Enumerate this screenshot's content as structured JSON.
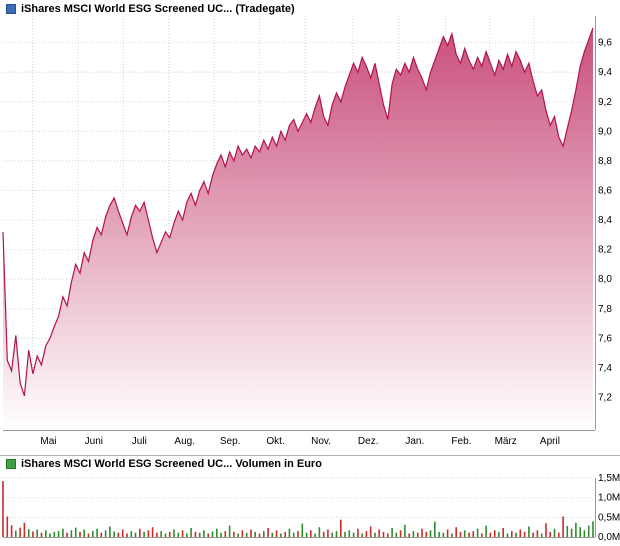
{
  "chart_data": [
    {
      "type": "area",
      "title": "iShares MSCI World ESG Screened UC... (Tradegate)",
      "xlabel": "",
      "ylabel": "",
      "ylim": [
        6.98,
        9.78
      ],
      "grid": true,
      "legend_position": "none",
      "line_color": "#b4124d",
      "fill_top": "#c94f7c",
      "fill_bottom": "#ffffff",
      "y_ticks": [
        {
          "value": 7.2,
          "label": "7,2"
        },
        {
          "value": 7.4,
          "label": "7,4"
        },
        {
          "value": 7.6,
          "label": "7,6"
        },
        {
          "value": 7.8,
          "label": "7,8"
        },
        {
          "value": 8.0,
          "label": "8,0"
        },
        {
          "value": 8.2,
          "label": "8,2"
        },
        {
          "value": 8.4,
          "label": "8,4"
        },
        {
          "value": 8.6,
          "label": "8,6"
        },
        {
          "value": 8.8,
          "label": "8,8"
        },
        {
          "value": 9.0,
          "label": "9,0"
        },
        {
          "value": 9.2,
          "label": "9,2"
        },
        {
          "value": 9.4,
          "label": "9,4"
        },
        {
          "value": 9.6,
          "label": "9,6"
        }
      ],
      "months": [
        {
          "label": "Mai",
          "line": 0.05
        },
        {
          "label": "Juni",
          "line": 0.127
        },
        {
          "label": "Juli",
          "line": 0.204
        },
        {
          "label": "Aug.",
          "line": 0.281
        },
        {
          "label": "Sep.",
          "line": 0.358
        },
        {
          "label": "Okt.",
          "line": 0.435
        },
        {
          "label": "Nov.",
          "line": 0.512
        },
        {
          "label": "Dez.",
          "line": 0.592
        },
        {
          "label": "Jan.",
          "line": 0.671
        },
        {
          "label": "Feb.",
          "line": 0.75
        },
        {
          "label": "März",
          "line": 0.825
        },
        {
          "label": "April",
          "line": 0.9
        }
      ],
      "values": [
        8.32,
        7.45,
        7.38,
        7.62,
        7.3,
        7.21,
        7.52,
        7.36,
        7.48,
        7.42,
        7.55,
        7.6,
        7.68,
        7.75,
        7.88,
        7.82,
        7.98,
        8.1,
        8.04,
        8.18,
        8.12,
        8.26,
        8.35,
        8.3,
        8.42,
        8.5,
        8.55,
        8.46,
        8.38,
        8.3,
        8.42,
        8.5,
        8.46,
        8.52,
        8.4,
        8.28,
        8.18,
        8.25,
        8.32,
        8.28,
        8.38,
        8.46,
        8.4,
        8.52,
        8.58,
        8.5,
        8.6,
        8.66,
        8.58,
        8.7,
        8.78,
        8.84,
        8.76,
        8.86,
        8.8,
        8.9,
        8.84,
        8.88,
        8.82,
        8.9,
        8.86,
        8.94,
        8.88,
        8.96,
        8.9,
        9.0,
        8.94,
        9.04,
        9.08,
        9.0,
        9.06,
        9.12,
        9.06,
        9.16,
        9.24,
        9.1,
        9.04,
        9.18,
        9.26,
        9.2,
        9.3,
        9.38,
        9.46,
        9.4,
        9.5,
        9.44,
        9.36,
        9.46,
        9.32,
        9.18,
        9.08,
        9.32,
        9.42,
        9.38,
        9.46,
        9.4,
        9.5,
        9.42,
        9.36,
        9.28,
        9.4,
        9.48,
        9.56,
        9.64,
        9.58,
        9.66,
        9.52,
        9.46,
        9.56,
        9.48,
        9.42,
        9.5,
        9.44,
        9.54,
        9.46,
        9.38,
        9.48,
        9.42,
        9.52,
        9.44,
        9.54,
        9.48,
        9.4,
        9.46,
        9.34,
        9.24,
        9.28,
        9.14,
        9.04,
        9.1,
        8.96,
        8.9,
        9.02,
        9.14,
        9.28,
        9.44,
        9.54,
        9.62,
        9.7
      ]
    },
    {
      "type": "bar",
      "title": "iShares MSCI World ESG Screened UC... Volumen in Euro",
      "xlabel": "",
      "ylabel": "Volumen in Euro",
      "ylim": [
        0,
        1.6
      ],
      "grid": true,
      "up_color": "#2e8b2e",
      "down_color": "#cc2929",
      "y_ticks": [
        {
          "value": 0.0,
          "label": "0,0M"
        },
        {
          "value": 0.5,
          "label": "0,5M"
        },
        {
          "value": 1.0,
          "label": "1,0M"
        },
        {
          "value": 1.5,
          "label": "1,5M"
        }
      ],
      "values": [
        1.42,
        0.52,
        0.3,
        0.16,
        0.24,
        0.36,
        0.2,
        0.14,
        0.19,
        0.11,
        0.17,
        0.09,
        0.13,
        0.15,
        0.21,
        0.11,
        0.17,
        0.24,
        0.13,
        0.19,
        0.09,
        0.15,
        0.21,
        0.11,
        0.17,
        0.27,
        0.14,
        0.11,
        0.19,
        0.09,
        0.15,
        0.11,
        0.21,
        0.13,
        0.17,
        0.25,
        0.11,
        0.15,
        0.09,
        0.13,
        0.19,
        0.11,
        0.17,
        0.09,
        0.23,
        0.13,
        0.11,
        0.17,
        0.09,
        0.14,
        0.21,
        0.11,
        0.15,
        0.29,
        0.13,
        0.09,
        0.17,
        0.11,
        0.19,
        0.13,
        0.09,
        0.15,
        0.23,
        0.11,
        0.17,
        0.09,
        0.13,
        0.21,
        0.11,
        0.15,
        0.34,
        0.11,
        0.17,
        0.09,
        0.25,
        0.13,
        0.19,
        0.11,
        0.15,
        0.44,
        0.13,
        0.17,
        0.11,
        0.21,
        0.09,
        0.15,
        0.27,
        0.11,
        0.19,
        0.13,
        0.09,
        0.23,
        0.11,
        0.17,
        0.31,
        0.09,
        0.15,
        0.11,
        0.21,
        0.13,
        0.17,
        0.39,
        0.13,
        0.11,
        0.19,
        0.09,
        0.25,
        0.13,
        0.17,
        0.11,
        0.15,
        0.21,
        0.09,
        0.29,
        0.11,
        0.17,
        0.13,
        0.23,
        0.09,
        0.15,
        0.11,
        0.19,
        0.13,
        0.27,
        0.11,
        0.17,
        0.09,
        0.35,
        0.13,
        0.21,
        0.11,
        0.52,
        0.28,
        0.21,
        0.36,
        0.25,
        0.17,
        0.29,
        0.4
      ]
    }
  ]
}
